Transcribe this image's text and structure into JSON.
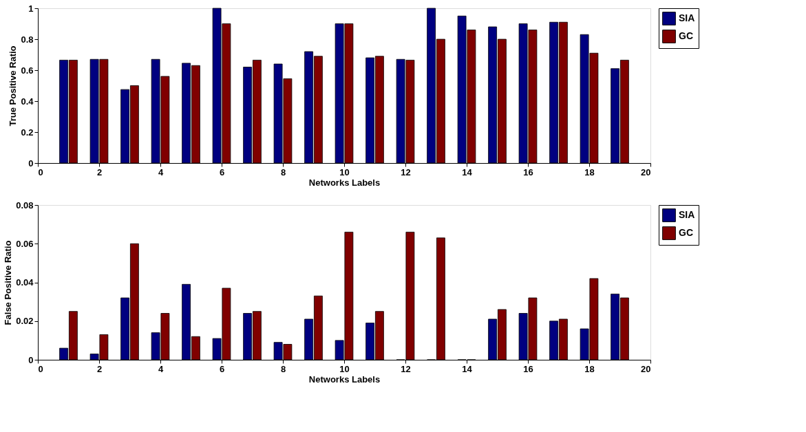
{
  "chart_data": [
    {
      "type": "bar",
      "xlabel": "Networks Labels",
      "ylabel": "True Positive Ratio",
      "x": [
        1,
        2,
        3,
        4,
        5,
        6,
        7,
        8,
        9,
        10,
        11,
        12,
        13,
        14,
        15,
        16,
        17,
        18,
        19
      ],
      "xlim": [
        0,
        20
      ],
      "xticks": [
        0,
        2,
        4,
        6,
        8,
        10,
        12,
        14,
        16,
        18,
        20
      ],
      "ylim": [
        0,
        1
      ],
      "yticks": [
        0,
        0.2,
        0.4,
        0.6,
        0.8,
        1
      ],
      "grid": false,
      "legend": "top right",
      "series": [
        {
          "name": "SIA",
          "color": "#000080",
          "values": [
            0.665,
            0.67,
            0.475,
            0.67,
            0.645,
            1.0,
            0.62,
            0.64,
            0.72,
            0.9,
            0.68,
            0.67,
            1.0,
            0.95,
            0.88,
            0.9,
            0.91,
            0.83,
            0.61
          ]
        },
        {
          "name": "GC",
          "color": "#800000",
          "values": [
            0.665,
            0.67,
            0.5,
            0.56,
            0.63,
            0.9,
            0.665,
            0.545,
            0.69,
            0.9,
            0.69,
            0.665,
            0.8,
            0.86,
            0.8,
            0.86,
            0.91,
            0.71,
            0.665
          ]
        }
      ]
    },
    {
      "type": "bar",
      "xlabel": "Networks Labels",
      "ylabel": "False Positive Ratio",
      "x": [
        1,
        2,
        3,
        4,
        5,
        6,
        7,
        8,
        9,
        10,
        11,
        12,
        13,
        14,
        15,
        16,
        17,
        18,
        19
      ],
      "xlim": [
        0,
        20
      ],
      "xticks": [
        0,
        2,
        4,
        6,
        8,
        10,
        12,
        14,
        16,
        18,
        20
      ],
      "ylim": [
        0,
        0.08
      ],
      "yticks": [
        0,
        0.02,
        0.04,
        0.06,
        0.08
      ],
      "grid": false,
      "legend": "top right",
      "series": [
        {
          "name": "SIA",
          "color": "#000080",
          "values": [
            0.006,
            0.003,
            0.032,
            0.014,
            0.039,
            0.011,
            0.024,
            0.009,
            0.021,
            0.01,
            0.019,
            0,
            0,
            0,
            0.021,
            0.024,
            0.02,
            0.016,
            0.034
          ]
        },
        {
          "name": "GC",
          "color": "#800000",
          "values": [
            0.025,
            0.013,
            0.06,
            0.024,
            0.012,
            0.037,
            0.025,
            0.008,
            0.033,
            0.066,
            0.025,
            0.066,
            0.063,
            0,
            0.026,
            0.032,
            0.021,
            0.042,
            0.032
          ]
        }
      ]
    }
  ]
}
